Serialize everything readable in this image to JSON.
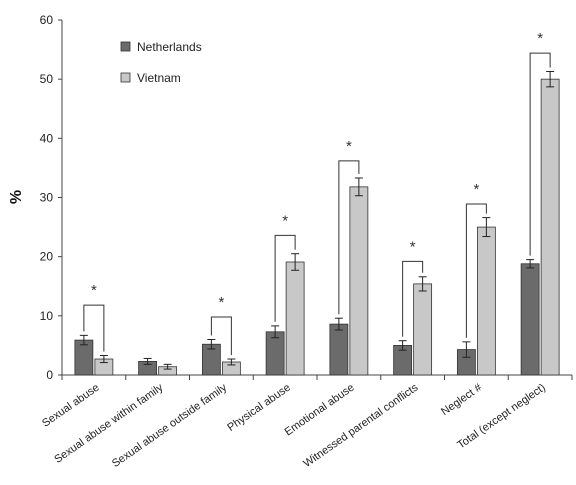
{
  "chart_data": {
    "type": "bar",
    "title": "",
    "xlabel": "",
    "ylabel": "%",
    "ylim": [
      0,
      60
    ],
    "yticks": [
      0,
      10,
      20,
      30,
      40,
      50,
      60
    ],
    "grid": false,
    "legend": "top-left",
    "categories": [
      "Sexual abuse",
      "Sexual abuse within family",
      "Sexual abuse outside family",
      "Physical abuse",
      "Emotional abuse",
      "Witnessed parental conflicts",
      "Neglect #",
      "Total (except neglect)"
    ],
    "series": [
      {
        "name": "Netherlands",
        "color": "#6b6b6b",
        "values": [
          5.9,
          2.3,
          5.2,
          7.3,
          8.6,
          5.0,
          4.3,
          18.8
        ],
        "errors": [
          0.8,
          0.5,
          0.8,
          1.0,
          1.0,
          0.8,
          1.3,
          0.7
        ]
      },
      {
        "name": "Vietnam",
        "color": "#c8c8c8",
        "values": [
          2.7,
          1.4,
          2.2,
          19.1,
          31.8,
          15.4,
          25.0,
          50.0
        ],
        "errors": [
          0.6,
          0.4,
          0.5,
          1.4,
          1.5,
          1.2,
          1.6,
          1.3
        ]
      }
    ],
    "significance": [
      {
        "category": 0,
        "bracket_top": 11.8,
        "label": "*"
      },
      {
        "category": 2,
        "bracket_top": 9.8,
        "label": "*"
      },
      {
        "category": 3,
        "bracket_top": 23.6,
        "label": "*"
      },
      {
        "category": 4,
        "bracket_top": 36.2,
        "label": "*"
      },
      {
        "category": 5,
        "bracket_top": 19.2,
        "label": "*"
      },
      {
        "category": 6,
        "bracket_top": 28.9,
        "label": "*"
      },
      {
        "category": 7,
        "bracket_top": 54.4,
        "label": "*"
      }
    ]
  }
}
